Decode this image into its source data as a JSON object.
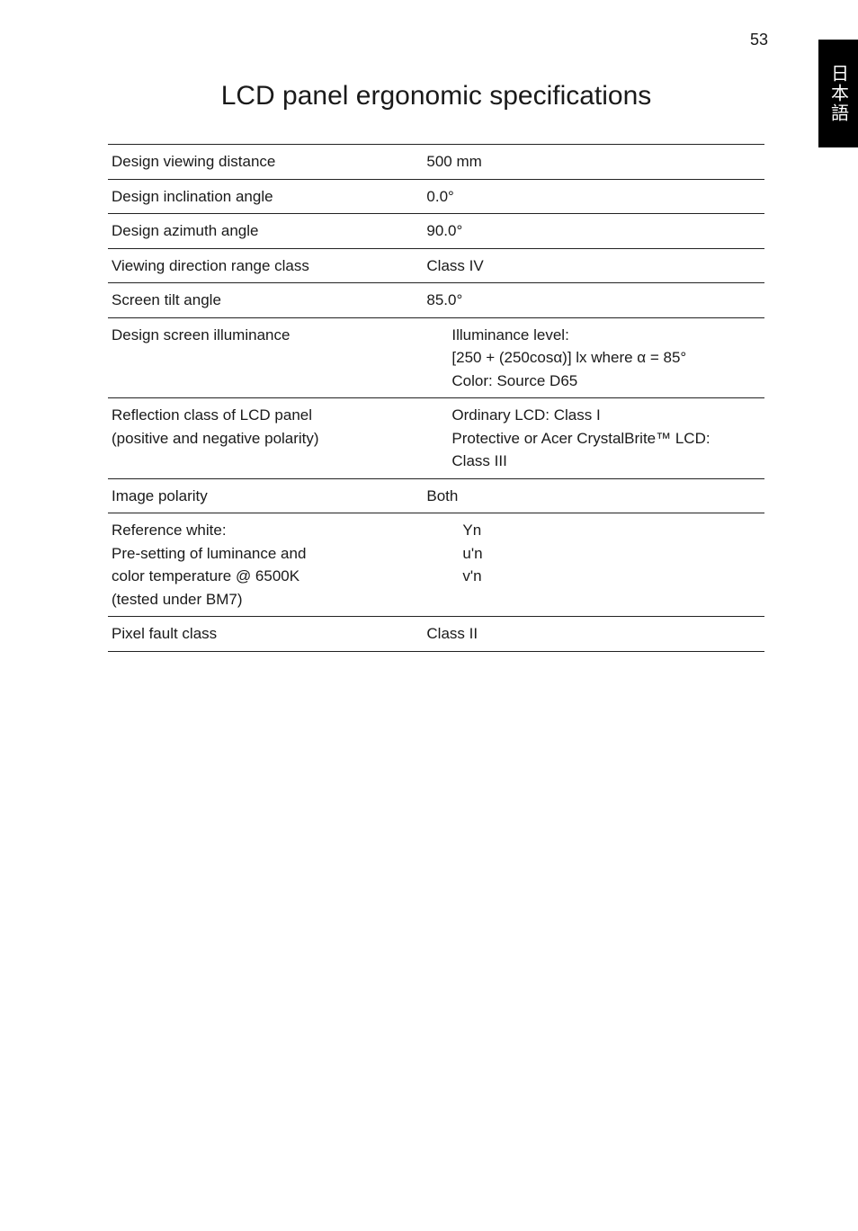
{
  "page_number": "53",
  "side_tab": "日本語",
  "title": "LCD panel ergonomic specifications",
  "rows": {
    "r0": {
      "label": "Design viewing distance",
      "value": "500 mm"
    },
    "r1": {
      "label": "Design inclination angle",
      "value": "0.0°"
    },
    "r2": {
      "label": "Design azimuth angle",
      "value": "90.0°"
    },
    "r3": {
      "label": "Viewing direction range class",
      "value": "Class IV"
    },
    "r4": {
      "label": "Screen tilt angle",
      "value": "85.0°"
    },
    "r5": {
      "label": "Design screen illuminance",
      "line1": "Illuminance level:",
      "line2": "[250 + (250cosα)] lx where α = 85°",
      "line3": "Color: Source D65"
    },
    "r6": {
      "label_line1": "Reflection class of LCD panel",
      "label_line2": "(positive and negative polarity)",
      "line1": "Ordinary LCD: Class I",
      "line2": "Protective or Acer CrystalBrite™ LCD:",
      "line3": "Class III"
    },
    "r7": {
      "label": "Image polarity",
      "value": "Both"
    },
    "r8": {
      "label_line1": "Reference white:",
      "label_line2": "Pre-setting of luminance and",
      "label_line3": "color temperature @ 6500K",
      "label_line4": "(tested under BM7)",
      "val_line1": "Yn",
      "val_line2": "u'n",
      "val_line3": "v'n"
    },
    "r9": {
      "label": "Pixel fault class",
      "value": "Class II"
    }
  }
}
